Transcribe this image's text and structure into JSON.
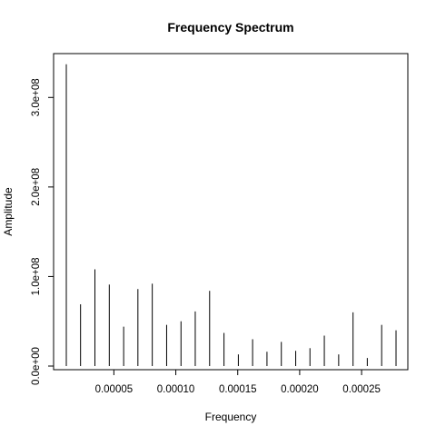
{
  "chart_data": {
    "type": "bar",
    "title": "Frequency Spectrum",
    "xlabel": "Frequency",
    "ylabel": "Amplitude",
    "xlim": [
      0.0,
      0.00029
    ],
    "ylim": [
      0,
      350000000
    ],
    "x_ticks": [
      {
        "value": 5e-05,
        "label": "0.00005"
      },
      {
        "value": 0.0001,
        "label": "0.00010"
      },
      {
        "value": 0.00015,
        "label": "0.00015"
      },
      {
        "value": 0.0002,
        "label": "0.00020"
      },
      {
        "value": 0.00025,
        "label": "0.00025"
      }
    ],
    "y_ticks": [
      {
        "value": 0,
        "label": "0.0e+00"
      },
      {
        "value": 100000000,
        "label": "1.0e+08"
      },
      {
        "value": 200000000,
        "label": "2.0e+08"
      },
      {
        "value": 300000000,
        "label": "3.0e+08"
      }
    ],
    "grid": false,
    "series": [
      {
        "style": "vertical-lines",
        "color": "#000000",
        "points": [
          {
            "x": 1.16e-05,
            "y": 337000000
          },
          {
            "x": 2.31e-05,
            "y": 69000000
          },
          {
            "x": 3.47e-05,
            "y": 108000000
          },
          {
            "x": 4.63e-05,
            "y": 91000000
          },
          {
            "x": 5.79e-05,
            "y": 44000000
          },
          {
            "x": 6.94e-05,
            "y": 86000000
          },
          {
            "x": 8.1e-05,
            "y": 92000000
          },
          {
            "x": 9.26e-05,
            "y": 46000000
          },
          {
            "x": 0.0001042,
            "y": 50000000
          },
          {
            "x": 0.0001157,
            "y": 61000000
          },
          {
            "x": 0.0001273,
            "y": 84000000
          },
          {
            "x": 0.0001389,
            "y": 37000000
          },
          {
            "x": 0.0001505,
            "y": 13000000
          },
          {
            "x": 0.000162,
            "y": 30000000
          },
          {
            "x": 0.0001736,
            "y": 16000000
          },
          {
            "x": 0.0001852,
            "y": 27000000
          },
          {
            "x": 0.0001968,
            "y": 17000000
          },
          {
            "x": 0.0002083,
            "y": 20000000
          },
          {
            "x": 0.0002199,
            "y": 34000000
          },
          {
            "x": 0.0002315,
            "y": 13000000
          },
          {
            "x": 0.0002431,
            "y": 60000000
          },
          {
            "x": 0.0002546,
            "y": 9000000
          },
          {
            "x": 0.0002662,
            "y": 46000000
          },
          {
            "x": 0.0002778,
            "y": 40000000
          }
        ]
      }
    ]
  }
}
